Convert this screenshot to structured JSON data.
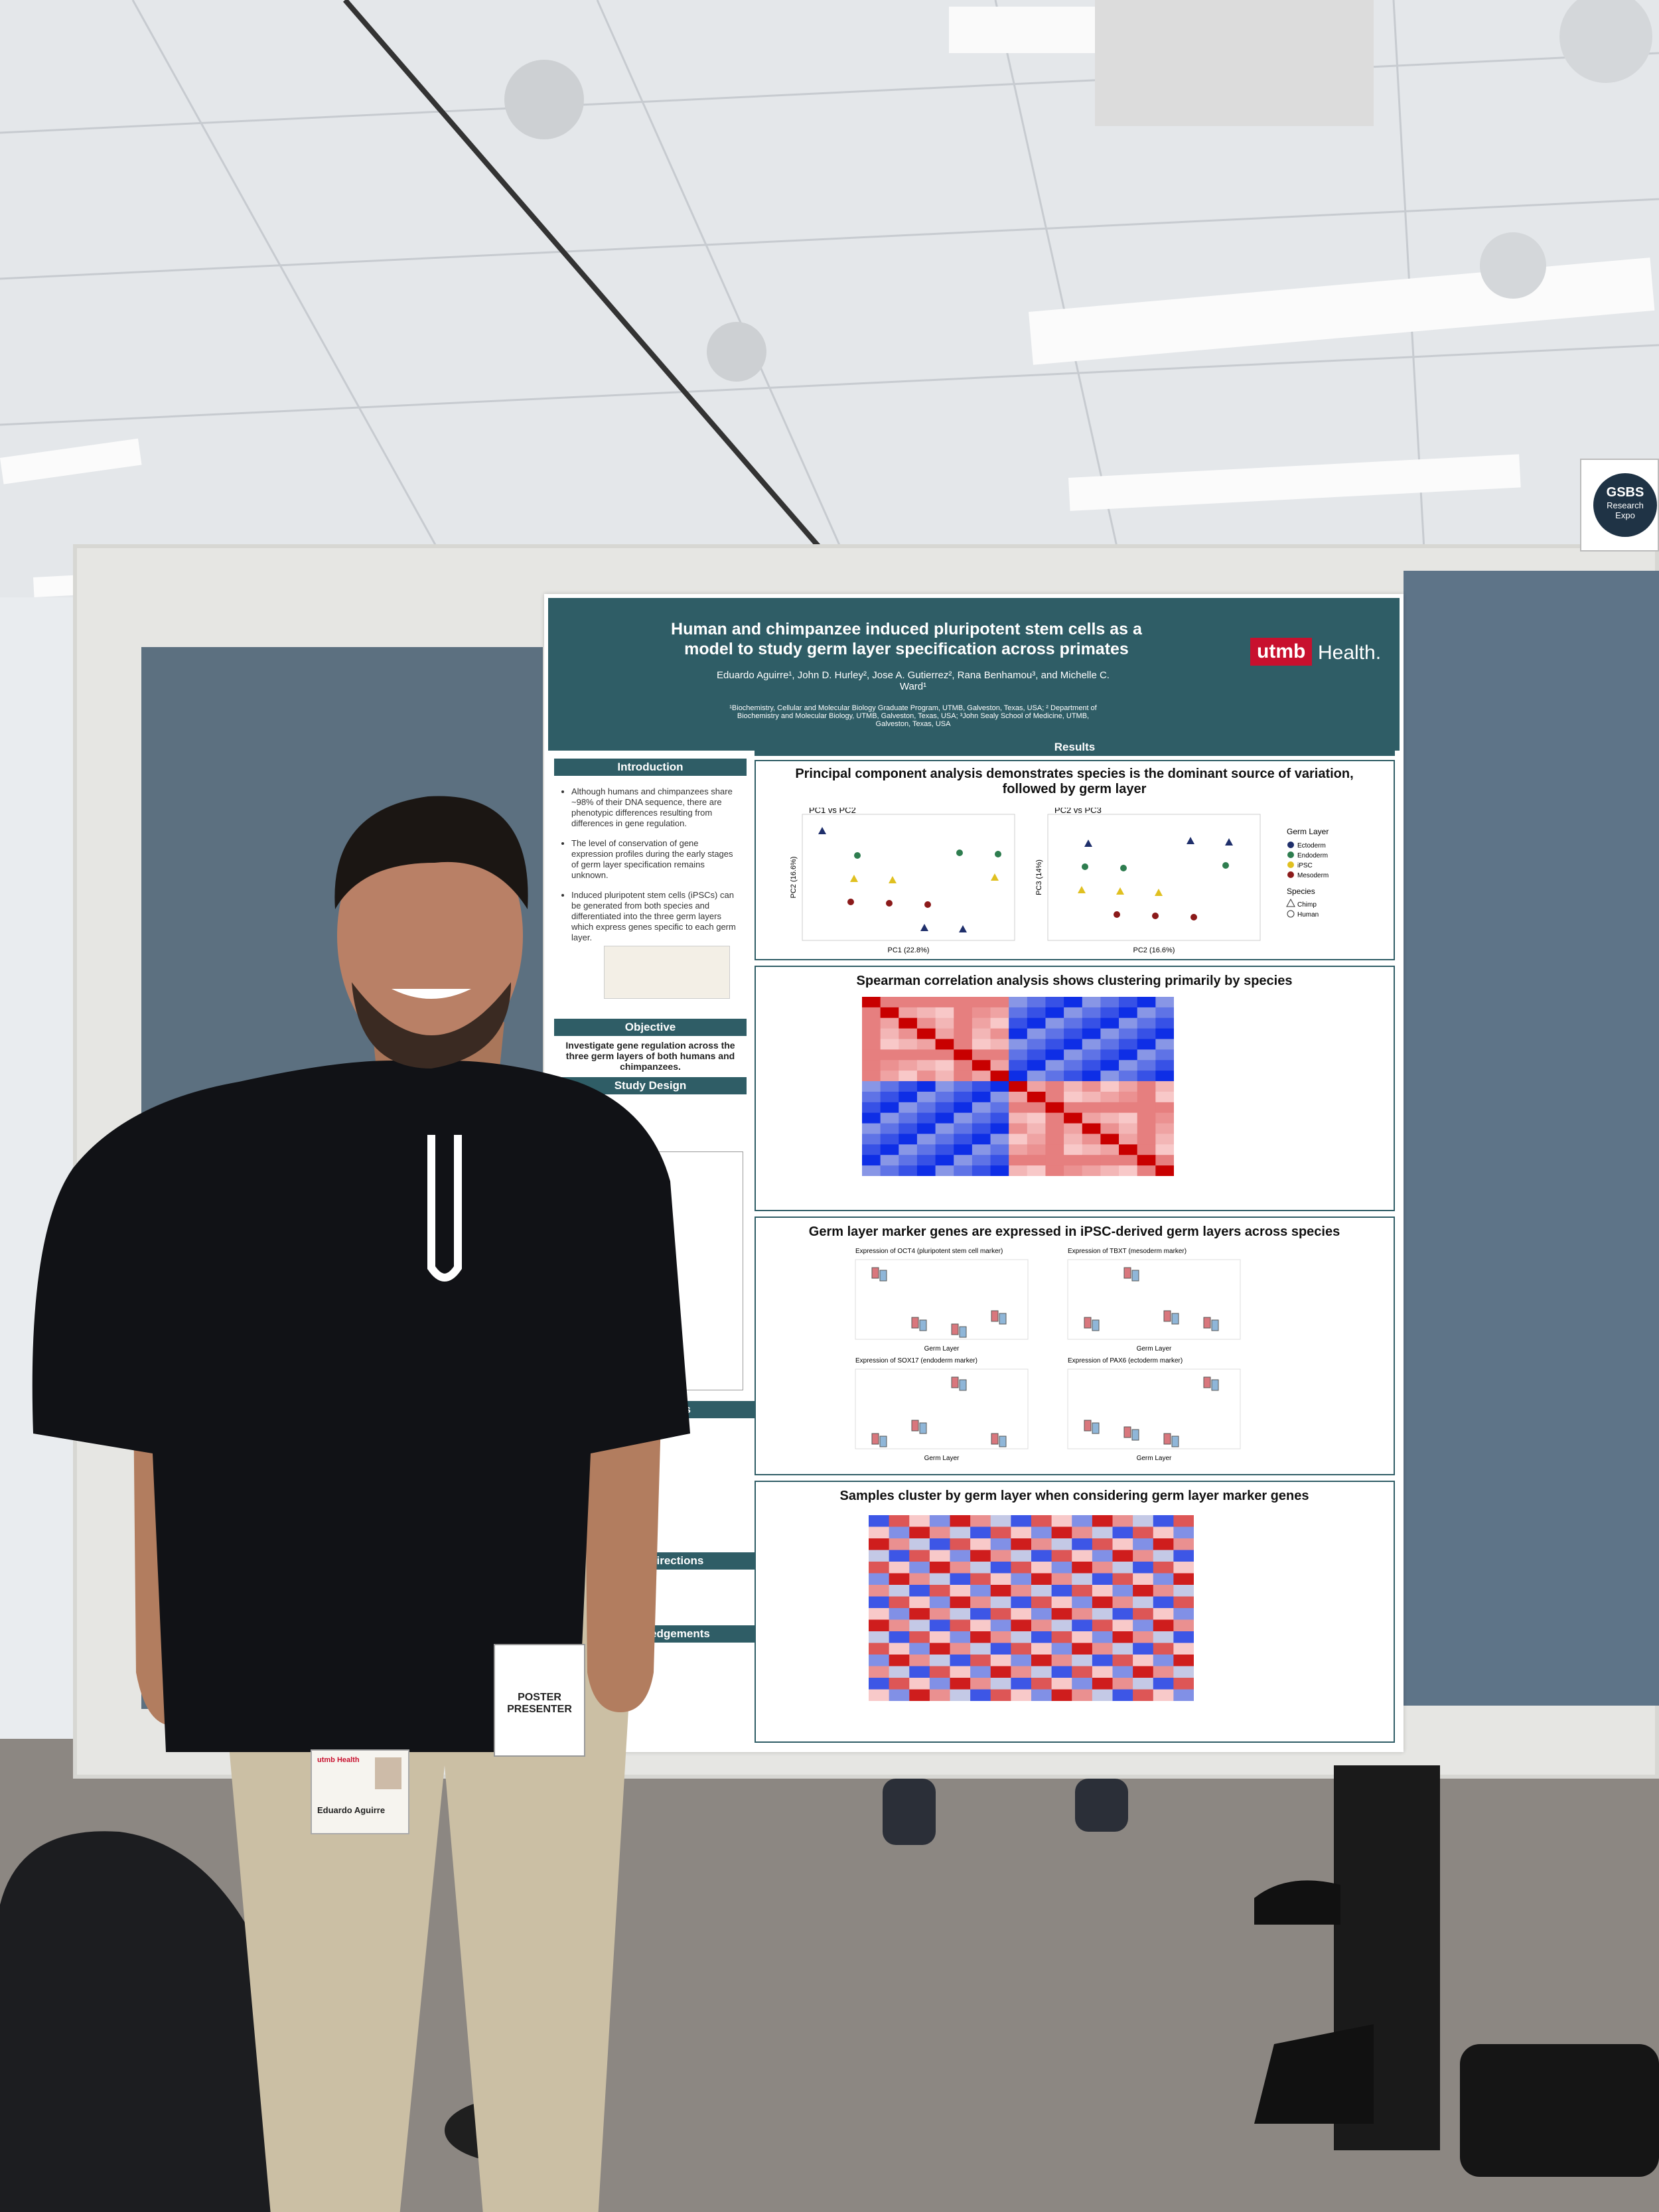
{
  "sign": {
    "line1": "GSBS",
    "line2": "Research",
    "line3": "Expo"
  },
  "poster": {
    "title": "Human and chimpanzee induced pluripotent stem cells as a model to study germ layer specification across primates",
    "authors": "Eduardo Aguirre¹, John D. Hurley², Jose A. Gutierrez², Rana Benhamou³, and Michelle C. Ward¹",
    "affiliations": "¹Biochemistry, Cellular and Molecular Biology Graduate Program, UTMB, Galveston, Texas, USA; ² Department of Biochemistry and Molecular Biology, UTMB, Galveston, Texas, USA; ³John Sealy School of Medicine, UTMB, Galveston, Texas, USA",
    "logo": {
      "brand": "utmb",
      "suffix": "Health."
    },
    "introduction": {
      "heading": "Introduction",
      "bullets": [
        "Although humans and chimpanzees share ~98% of their DNA sequence, there are phenotypic differences resulting from differences in gene regulation.",
        "The level of conservation of gene expression profiles during the early stages of germ layer specification remains unknown.",
        "Induced pluripotent stem cells (iPSCs) can be generated from both species and differentiated into the three germ layers which express genes specific to each germ layer."
      ]
    },
    "objective": {
      "heading": "Objective",
      "text": "Investigate gene regulation across the three germ layers of both humans and chimpanzees."
    },
    "study_design": {
      "heading": "Study Design"
    },
    "conclusions": {
      "heading": "Conclusions"
    },
    "future_directions": {
      "heading": "Future Directions"
    },
    "acknowledgements": {
      "heading": "Acknowledgements"
    },
    "results": {
      "heading": "Results",
      "pca": {
        "heading": "Principal component analysis demonstrates species is the dominant source of variation, followed by germ layer",
        "plots": [
          {
            "title": "PC1 vs PC2",
            "xlabel": "PC1 (22.8%)",
            "ylabel": "PC2 (16.6%)"
          },
          {
            "title": "PC2 vs PC3",
            "xlabel": "PC2 (16.6%)",
            "ylabel": "PC3 (14%)"
          }
        ],
        "legend": {
          "germ_title": "Germ Layer",
          "germ": [
            "Ectoderm",
            "Endoderm",
            "iPSC",
            "Mesoderm"
          ],
          "species_title": "Species",
          "species": [
            "Chimp",
            "Human"
          ]
        }
      },
      "spearman": {
        "heading": "Spearman correlation analysis shows clustering primarily by species"
      },
      "markers": {
        "heading": "Germ layer marker genes are expressed in iPSC-derived germ layers across species",
        "plots": [
          "Expression of OCT4 (pluripotent stem cell marker)",
          "Expression of TBXT (mesoderm marker)",
          "Expression of SOX17 (endoderm marker)",
          "Expression of PAX6 (ectoderm marker)"
        ],
        "xlabel": "Germ Layer"
      },
      "marker_heatmap": {
        "heading": "Samples cluster by germ layer when considering germ layer marker genes"
      }
    }
  },
  "badges": {
    "presenter": "POSTER PRESENTER",
    "id_name": "Eduardo Aguirre",
    "id_brand": "utmb Health"
  }
}
